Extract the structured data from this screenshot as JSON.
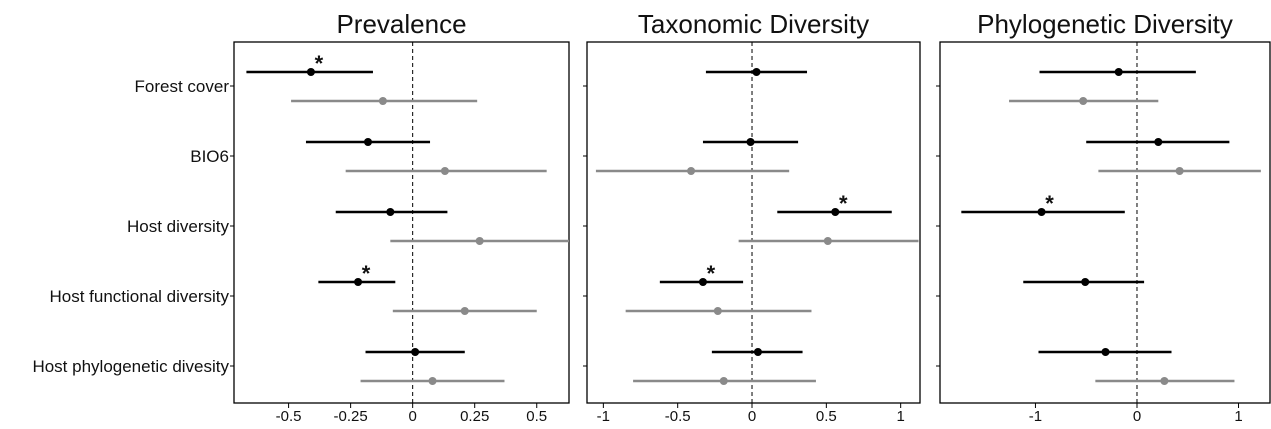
{
  "chart_data": {
    "type": "forest-plot",
    "rows": [
      "Forest cover",
      "BIO6",
      "Host diversity",
      "Host functional diversity",
      "Host phylogenetic divesity"
    ],
    "colors": {
      "series_a": "#000000",
      "series_b": "#8a8a8a",
      "zero_line": "#000000"
    },
    "panels": [
      {
        "title": "Prevalence",
        "xlim": [
          -0.72,
          0.63
        ],
        "ticks": [
          {
            "value": -0.5,
            "label": "-0.5"
          },
          {
            "value": -0.25,
            "label": "-0.25"
          },
          {
            "value": 0,
            "label": "0"
          },
          {
            "value": 0.25,
            "label": "0.25"
          },
          {
            "value": 0.5,
            "label": "0.5"
          }
        ],
        "series": [
          {
            "color": "black",
            "points": [
              {
                "row": "Forest cover",
                "estimate": -0.41,
                "lower": -0.67,
                "upper": -0.16,
                "significant": true
              },
              {
                "row": "BIO6",
                "estimate": -0.18,
                "lower": -0.43,
                "upper": 0.07,
                "significant": false
              },
              {
                "row": "Host diversity",
                "estimate": -0.09,
                "lower": -0.31,
                "upper": 0.14,
                "significant": false
              },
              {
                "row": "Host functional diversity",
                "estimate": -0.22,
                "lower": -0.38,
                "upper": -0.07,
                "significant": true
              },
              {
                "row": "Host phylogenetic divesity",
                "estimate": 0.01,
                "lower": -0.19,
                "upper": 0.21,
                "significant": false
              }
            ]
          },
          {
            "color": "grey",
            "points": [
              {
                "row": "Forest cover",
                "estimate": -0.12,
                "lower": -0.49,
                "upper": 0.26,
                "significant": false
              },
              {
                "row": "BIO6",
                "estimate": 0.13,
                "lower": -0.27,
                "upper": 0.54,
                "significant": false
              },
              {
                "row": "Host diversity",
                "estimate": 0.27,
                "lower": -0.09,
                "upper": 0.63,
                "significant": false
              },
              {
                "row": "Host functional diversity",
                "estimate": 0.21,
                "lower": -0.08,
                "upper": 0.5,
                "significant": false
              },
              {
                "row": "Host phylogenetic divesity",
                "estimate": 0.08,
                "lower": -0.21,
                "upper": 0.37,
                "significant": false
              }
            ]
          }
        ]
      },
      {
        "title": "Taxonomic Diversity",
        "xlim": [
          -1.11,
          1.13
        ],
        "ticks": [
          {
            "value": -1,
            "label": "-1"
          },
          {
            "value": -0.5,
            "label": "-0.5"
          },
          {
            "value": 0,
            "label": "0"
          },
          {
            "value": 0.5,
            "label": "0.5"
          },
          {
            "value": 1,
            "label": "1"
          }
        ],
        "series": [
          {
            "color": "black",
            "points": [
              {
                "row": "Forest cover",
                "estimate": 0.03,
                "lower": -0.31,
                "upper": 0.37,
                "significant": false
              },
              {
                "row": "BIO6",
                "estimate": -0.01,
                "lower": -0.33,
                "upper": 0.31,
                "significant": false
              },
              {
                "row": "Host diversity",
                "estimate": 0.56,
                "lower": 0.17,
                "upper": 0.94,
                "significant": true
              },
              {
                "row": "Host functional diversity",
                "estimate": -0.33,
                "lower": -0.62,
                "upper": -0.06,
                "significant": true
              },
              {
                "row": "Host phylogenetic divesity",
                "estimate": 0.04,
                "lower": -0.27,
                "upper": 0.34,
                "significant": false
              }
            ]
          },
          {
            "color": "grey",
            "points": [
              {
                "row": "Forest cover",
                "estimate": null,
                "lower": null,
                "upper": null,
                "significant": false
              },
              {
                "row": "BIO6",
                "estimate": -0.41,
                "lower": -1.05,
                "upper": 0.25,
                "significant": false
              },
              {
                "row": "Host diversity",
                "estimate": 0.51,
                "lower": -0.09,
                "upper": 1.12,
                "significant": false
              },
              {
                "row": "Host functional diversity",
                "estimate": -0.23,
                "lower": -0.85,
                "upper": 0.4,
                "significant": false
              },
              {
                "row": "Host phylogenetic divesity",
                "estimate": -0.19,
                "lower": -0.8,
                "upper": 0.43,
                "significant": false
              }
            ]
          }
        ]
      },
      {
        "title": "Phylogenetic Diversity",
        "xlim": [
          -1.94,
          1.31
        ],
        "ticks": [
          {
            "value": -1,
            "label": "-1"
          },
          {
            "value": 0,
            "label": "0"
          },
          {
            "value": 1,
            "label": "1"
          }
        ],
        "series": [
          {
            "color": "black",
            "points": [
              {
                "row": "Forest cover",
                "estimate": -0.18,
                "lower": -0.96,
                "upper": 0.58,
                "significant": false
              },
              {
                "row": "BIO6",
                "estimate": 0.21,
                "lower": -0.5,
                "upper": 0.91,
                "significant": false
              },
              {
                "row": "Host diversity",
                "estimate": -0.94,
                "lower": -1.73,
                "upper": -0.12,
                "significant": true
              },
              {
                "row": "Host functional diversity",
                "estimate": -0.51,
                "lower": -1.12,
                "upper": 0.07,
                "significant": false
              },
              {
                "row": "Host phylogenetic divesity",
                "estimate": -0.31,
                "lower": -0.97,
                "upper": 0.34,
                "significant": false
              }
            ]
          },
          {
            "color": "grey",
            "points": [
              {
                "row": "Forest cover",
                "estimate": -0.53,
                "lower": -1.26,
                "upper": 0.21,
                "significant": false
              },
              {
                "row": "BIO6",
                "estimate": 0.42,
                "lower": -0.38,
                "upper": 1.22,
                "significant": false
              },
              {
                "row": "Host diversity",
                "estimate": null,
                "lower": null,
                "upper": null,
                "significant": false
              },
              {
                "row": "Host functional diversity",
                "estimate": null,
                "lower": null,
                "upper": null,
                "significant": false
              },
              {
                "row": "Host phylogenetic divesity",
                "estimate": 0.27,
                "lower": -0.41,
                "upper": 0.96,
                "significant": false
              }
            ]
          }
        ]
      }
    ],
    "significance_marker": "*"
  }
}
